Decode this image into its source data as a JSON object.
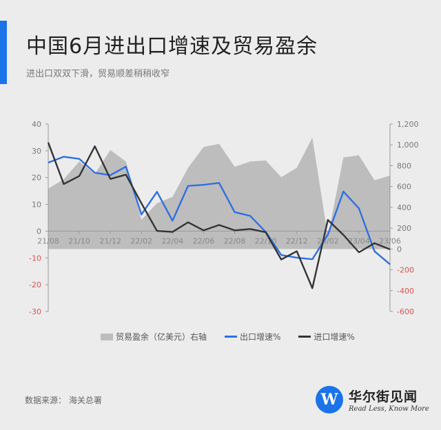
{
  "header": {
    "title": "中国6月进出口增速及贸易盈余",
    "subtitle": "进出口双双下滑，贸易顺差稍稍收窄"
  },
  "source": "数据来源： 海关总署",
  "brand": {
    "name": "华尔街见闻",
    "slogan": "Read Less, Know More",
    "logo_letter": "W"
  },
  "colors": {
    "accent": "#1a73e8",
    "export": "#2f6fe0",
    "import": "#333333",
    "surplus": "#bdbdbd",
    "right_axis": "#d9534f"
  },
  "chart_data": {
    "type": "line",
    "x": [
      "21/08",
      "21/09",
      "21/10",
      "21/11",
      "21/12",
      "22/01",
      "22/02",
      "22/03",
      "22/04",
      "22/05",
      "22/06",
      "22/07",
      "22/08",
      "22/09",
      "22/10",
      "22/11",
      "22/12",
      "23/01",
      "23/02",
      "23/03",
      "23/04",
      "23/05",
      "23/06"
    ],
    "x_tick_labels": [
      "21/08",
      "21/10",
      "21/12",
      "22/02",
      "22/04",
      "22/06",
      "22/08",
      "22/10",
      "22/12",
      "23/02",
      "23/04",
      "23/06"
    ],
    "y_left": {
      "lim": [
        -30,
        40
      ],
      "ticks": [
        "40",
        "30",
        "20",
        "10",
        "0",
        "-10",
        "-20",
        "-30"
      ]
    },
    "y_right": {
      "lim": [
        -600,
        1200
      ],
      "ticks": [
        "1,200",
        "1,000",
        "800",
        "600",
        "400",
        "200",
        "0",
        "-200",
        "-400",
        "-600"
      ]
    },
    "series": [
      {
        "name": "贸易盈余（亿美元）右轴",
        "type": "area",
        "axis": "right",
        "values": [
          580,
          670,
          840,
          720,
          950,
          840,
          280,
          440,
          500,
          780,
          980,
          1010,
          790,
          840,
          850,
          690,
          780,
          1070,
          120,
          880,
          900,
          660,
          705
        ]
      },
      {
        "name": "出口增速%",
        "type": "line",
        "axis": "left",
        "values": [
          25.6,
          27.8,
          27.0,
          21.8,
          20.9,
          24.1,
          6.2,
          14.7,
          3.9,
          16.9,
          17.3,
          18.0,
          7.1,
          5.7,
          -0.3,
          -8.9,
          -9.9,
          -10.5,
          -1.3,
          14.8,
          8.5,
          -7.5,
          -12.4
        ]
      },
      {
        "name": "进口增速%",
        "type": "line",
        "axis": "left",
        "values": [
          33.1,
          17.6,
          20.6,
          31.7,
          19.5,
          21.1,
          10.4,
          0.1,
          -0.3,
          3.3,
          0.3,
          2.3,
          0.3,
          0.8,
          -0.4,
          -10.6,
          -7.5,
          -21.3,
          4.2,
          -1.4,
          -7.9,
          -4.5,
          -6.8
        ]
      }
    ],
    "legend_position": "bottom",
    "grid": false
  }
}
